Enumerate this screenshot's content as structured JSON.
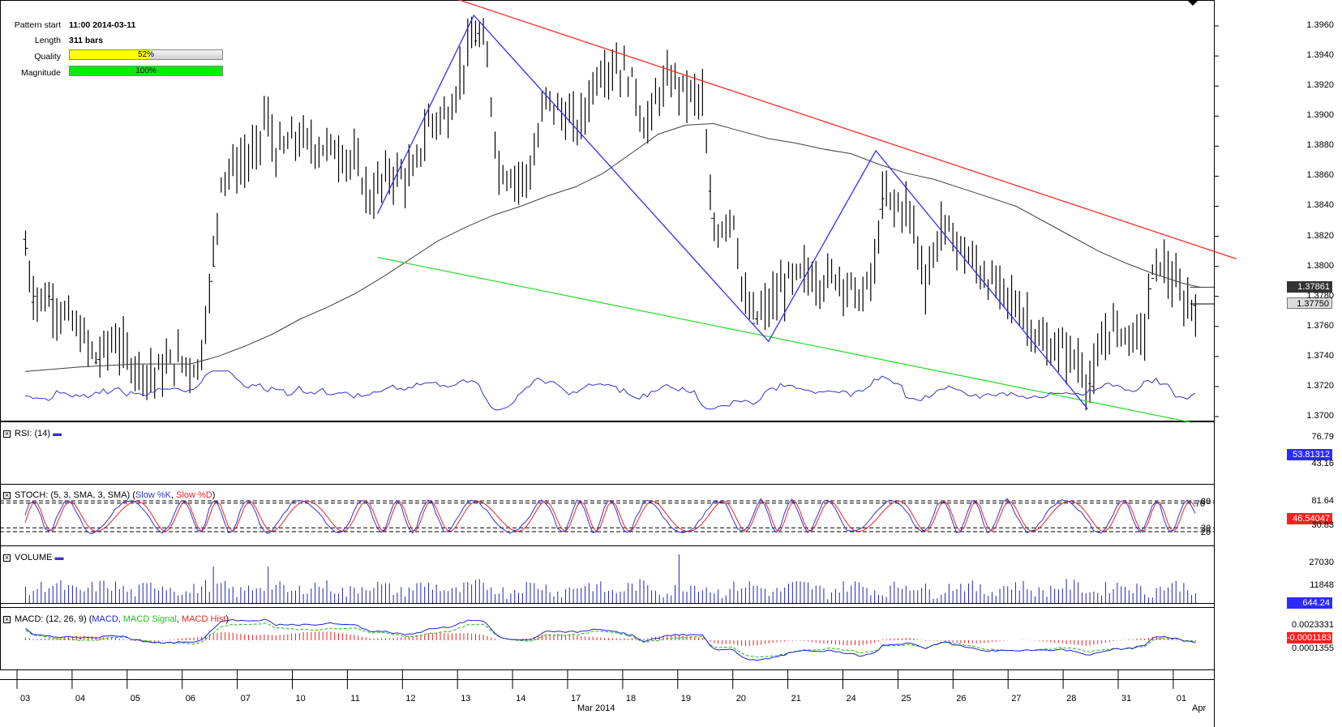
{
  "info": {
    "pattern_start_label": "Pattern start",
    "pattern_start_value": "11:00 2014-03-11",
    "length_label": "Length",
    "length_value": "311 bars",
    "quality_label": "Quality",
    "quality_value": "52%",
    "quality_fraction": 0.52,
    "magnitude_label": "Magnitude",
    "magnitude_value": "100%",
    "magnitude_fraction": 1.0
  },
  "colors": {
    "resistance": "#ff2a2a",
    "support": "#33dd33",
    "zigzag": "#2f2fff",
    "ma": "#404040",
    "price": "#000000",
    "quality_fill": "#ffff00",
    "magnitude_fill": "#00ee00",
    "rsi": "#3333cc",
    "stoch_k": "#3333cc",
    "stoch_d": "#ee2222",
    "volume": "#2222bb",
    "macd": "#2222cc",
    "macd_signal": "#22bb22",
    "macd_hist": "#ee2222",
    "tag_dark": "#333333",
    "tag_blue": "#2b2bff",
    "tag_red": "#ff2020",
    "tag_green": "#22bb22"
  },
  "chart_data": {
    "type": "ohlc",
    "instrument_scale": "price",
    "x_categories": [
      "03",
      "04",
      "05",
      "06",
      "07",
      "10",
      "11",
      "12",
      "13",
      "14",
      "17",
      "18",
      "19",
      "20",
      "21",
      "24",
      "25",
      "26",
      "27",
      "28",
      "31",
      "01"
    ],
    "x_month_labels": [
      "Mar 2014",
      "Apr"
    ],
    "y_ticks": [
      "1.3960",
      "1.3940",
      "1.3920",
      "1.3900",
      "1.3880",
      "1.3860",
      "1.3840",
      "1.3820",
      "1.3800",
      "1.3780",
      "1.3760",
      "1.3740",
      "1.3720",
      "1.3700"
    ],
    "ylim": [
      1.3697,
      1.3977
    ],
    "close_keyframes": [
      [
        0,
        1.3812
      ],
      [
        0.15,
        1.378
      ],
      [
        0.45,
        1.3778
      ],
      [
        0.9,
        1.376
      ],
      [
        1.3,
        1.3738
      ],
      [
        1.6,
        1.3752
      ],
      [
        1.95,
        1.3735
      ],
      [
        2.35,
        1.3728
      ],
      [
        2.75,
        1.3738
      ],
      [
        3.15,
        1.3732
      ],
      [
        3.4,
        1.38
      ],
      [
        3.55,
        1.386
      ],
      [
        3.9,
        1.3868
      ],
      [
        4.2,
        1.3875
      ],
      [
        4.35,
        1.3902
      ],
      [
        4.55,
        1.3875
      ],
      [
        4.9,
        1.3885
      ],
      [
        5.3,
        1.388
      ],
      [
        5.65,
        1.3878
      ],
      [
        6.0,
        1.3868
      ],
      [
        6.25,
        1.3845
      ],
      [
        6.6,
        1.3862
      ],
      [
        7.05,
        1.386
      ],
      [
        7.3,
        1.3895
      ],
      [
        7.7,
        1.3902
      ],
      [
        8.0,
        1.394
      ],
      [
        8.2,
        1.3955
      ],
      [
        8.35,
        1.3945
      ],
      [
        8.6,
        1.3865
      ],
      [
        9.0,
        1.3858
      ],
      [
        9.2,
        1.3865
      ],
      [
        9.45,
        1.3912
      ],
      [
        9.8,
        1.39
      ],
      [
        10.05,
        1.3892
      ],
      [
        10.4,
        1.393
      ],
      [
        10.75,
        1.3934
      ],
      [
        11.05,
        1.3922
      ],
      [
        11.25,
        1.389
      ],
      [
        11.5,
        1.3915
      ],
      [
        11.75,
        1.3925
      ],
      [
        12.05,
        1.3915
      ],
      [
        12.3,
        1.3912
      ],
      [
        12.45,
        1.3832
      ],
      [
        12.55,
        1.3822
      ],
      [
        12.85,
        1.3838
      ],
      [
        13.05,
        1.3775
      ],
      [
        13.25,
        1.3765
      ],
      [
        13.55,
        1.3775
      ],
      [
        13.85,
        1.379
      ],
      [
        14.2,
        1.3795
      ],
      [
        14.45,
        1.379
      ],
      [
        14.75,
        1.3795
      ],
      [
        15.0,
        1.3785
      ],
      [
        15.2,
        1.3778
      ],
      [
        15.45,
        1.3802
      ],
      [
        15.55,
        1.3845
      ],
      [
        16.05,
        1.3838
      ],
      [
        16.35,
        1.379
      ],
      [
        16.65,
        1.3828
      ],
      [
        17.15,
        1.3805
      ],
      [
        17.5,
        1.379
      ],
      [
        17.9,
        1.3778
      ],
      [
        18.2,
        1.3765
      ],
      [
        18.5,
        1.3745
      ],
      [
        18.85,
        1.3745
      ],
      [
        19.15,
        1.3735
      ],
      [
        19.35,
        1.372
      ],
      [
        19.5,
        1.374
      ],
      [
        19.7,
        1.376
      ],
      [
        20.05,
        1.3755
      ],
      [
        20.3,
        1.3752
      ],
      [
        20.45,
        1.3792
      ],
      [
        20.6,
        1.3805
      ],
      [
        20.8,
        1.3792
      ],
      [
        21.05,
        1.3775
      ],
      [
        21.25,
        1.3775
      ]
    ],
    "open_close_marks": [
      [
        0,
        1.3818,
        1.3812
      ],
      [
        0.15,
        1.3776,
        1.378
      ],
      [
        0.45,
        1.378,
        1.3778
      ],
      [
        1.3,
        1.3736,
        1.3738
      ],
      [
        3.4,
        1.379,
        1.38
      ],
      [
        8.2,
        1.395,
        1.3955
      ],
      [
        12.45,
        1.385,
        1.3832
      ],
      [
        13.25,
        1.3762,
        1.3765
      ],
      [
        15.55,
        1.3838,
        1.3845
      ],
      [
        19.35,
        1.3722,
        1.372
      ],
      [
        20.45,
        1.3785,
        1.3792
      ],
      [
        21.25,
        1.3774,
        1.3775
      ]
    ],
    "moving_average": [
      [
        0,
        1.373
      ],
      [
        1.0,
        1.3733
      ],
      [
        2.0,
        1.3735
      ],
      [
        3.0,
        1.3735
      ],
      [
        3.5,
        1.374
      ],
      [
        4.0,
        1.3747
      ],
      [
        4.5,
        1.3755
      ],
      [
        5.0,
        1.3765
      ],
      [
        5.5,
        1.3773
      ],
      [
        6.0,
        1.3782
      ],
      [
        6.5,
        1.3793
      ],
      [
        7.0,
        1.3805
      ],
      [
        7.5,
        1.3817
      ],
      [
        8.0,
        1.3826
      ],
      [
        8.5,
        1.3834
      ],
      [
        9.0,
        1.384
      ],
      [
        9.5,
        1.3847
      ],
      [
        10.0,
        1.3853
      ],
      [
        10.5,
        1.3862
      ],
      [
        11.0,
        1.3875
      ],
      [
        11.5,
        1.3888
      ],
      [
        12.0,
        1.3894
      ],
      [
        12.5,
        1.3895
      ],
      [
        13.0,
        1.389
      ],
      [
        13.5,
        1.3885
      ],
      [
        14.0,
        1.3882
      ],
      [
        14.5,
        1.3878
      ],
      [
        15.0,
        1.3875
      ],
      [
        15.5,
        1.3868
      ],
      [
        16.0,
        1.3862
      ],
      [
        16.5,
        1.3858
      ],
      [
        17.0,
        1.3852
      ],
      [
        17.5,
        1.3846
      ],
      [
        18.0,
        1.384
      ],
      [
        18.5,
        1.383
      ],
      [
        19.0,
        1.382
      ],
      [
        19.5,
        1.381
      ],
      [
        20.0,
        1.3802
      ],
      [
        20.5,
        1.3795
      ],
      [
        21.0,
        1.3789
      ],
      [
        21.35,
        1.3786
      ]
    ],
    "resistance_line": [
      [
        7.5,
        1.3982
      ],
      [
        22.0,
        1.3805
      ]
    ],
    "support_line": [
      [
        6.4,
        1.3806
      ],
      [
        21.2,
        1.3696
      ]
    ],
    "zigzag": [
      [
        6.4,
        1.3835
      ],
      [
        8.15,
        1.3967
      ],
      [
        13.5,
        1.375
      ],
      [
        15.45,
        1.3877
      ],
      [
        19.3,
        1.3705
      ],
      [
        21.0,
        1.372
      ]
    ],
    "last_price_tags": {
      "ma": "1.37861",
      "price": "1.37750"
    },
    "indicators": {
      "rsi": {
        "title": "RSI: (14)",
        "levels": [
          "70",
          "30"
        ],
        "right_values": [
          "76.79",
          "53.81312",
          "43.16"
        ]
      },
      "stoch": {
        "title_prefix": "STOCH: (5, 3, SMA, 3, SMA)",
        "k_label": "Slow %K",
        "d_label": "Slow %D",
        "levels": [
          "80",
          "20"
        ],
        "right_values": [
          "81.64",
          "46.54047",
          "30.83"
        ]
      },
      "volume": {
        "title": "VOLUME",
        "right_values": [
          "27030",
          "11848",
          "644.24"
        ]
      },
      "macd": {
        "title_prefix": "MACD: (12, 26, 9)",
        "macd_label": "MACD",
        "signal_label": "MACD Signal",
        "hist_label": "MACD Hist",
        "right_values": [
          "0.0023331",
          "-0.0001183",
          "0.0001355"
        ]
      }
    }
  }
}
